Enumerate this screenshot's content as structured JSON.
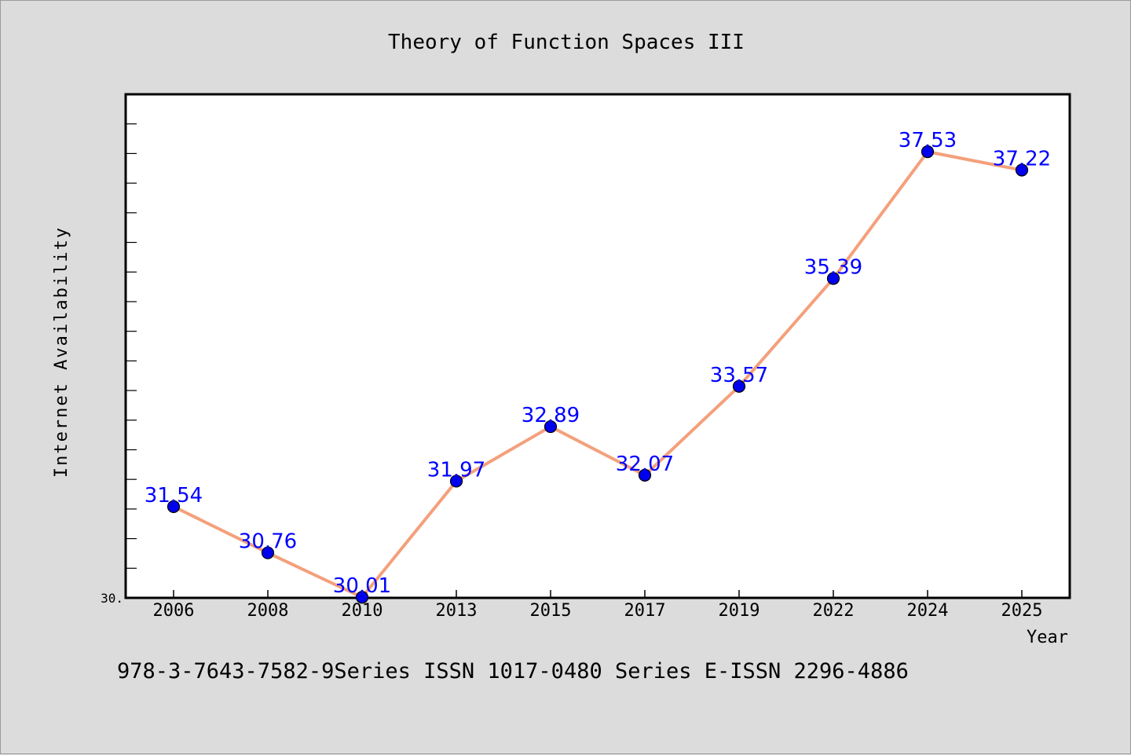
{
  "chart_data": {
    "type": "line",
    "title": "Theory of Function Spaces III",
    "xlabel": "Year",
    "ylabel": "Internet Availability",
    "categories": [
      "2006",
      "2008",
      "2010",
      "2013",
      "2015",
      "2017",
      "2019",
      "2022",
      "2024",
      "2025"
    ],
    "series": [
      {
        "values": [
          31.54,
          30.76,
          30.01,
          31.97,
          32.89,
          32.07,
          33.57,
          35.39,
          37.53,
          37.22
        ],
        "labels": [
          "31.54",
          "30.76",
          "30.01",
          "31.97",
          "32.89",
          "32.07",
          "33.57",
          "35.39",
          "37.53",
          "37.22"
        ]
      }
    ],
    "ylim": [
      30.0,
      38.5
    ],
    "y_tick_label": "30.",
    "grid": false,
    "colors": {
      "line": "#f4a07c",
      "marker": "#0000ee",
      "data_label": "#0000ff",
      "plot_background": "#ffffff",
      "page_background": "#dcdcdc"
    }
  },
  "footer": {
    "text": "978-3-7643-7582-9Series ISSN 1017-0480 Series E-ISSN 2296-4886"
  }
}
